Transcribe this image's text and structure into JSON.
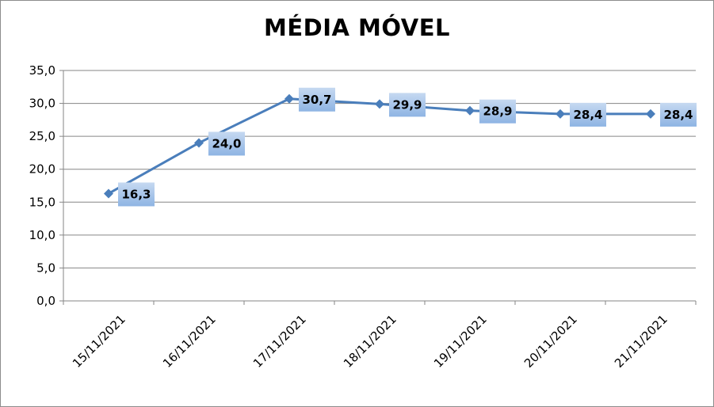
{
  "chart_data": {
    "type": "line",
    "title": "MÉDIA MÓVEL",
    "categories": [
      "15/11/2021",
      "16/11/2021",
      "17/11/2021",
      "18/11/2021",
      "19/11/2021",
      "20/11/2021",
      "21/11/2021"
    ],
    "series": [
      {
        "values": [
          16.3,
          24.0,
          30.7,
          29.9,
          28.9,
          28.4,
          28.4
        ]
      }
    ],
    "data_labels": [
      "16,3",
      "24,0",
      "30,7",
      "29,9",
      "28,9",
      "28,4",
      "28,4"
    ],
    "y_ticks": [
      "0,0",
      "5,0",
      "10,0",
      "15,0",
      "20,0",
      "25,0",
      "30,0",
      "35,0"
    ],
    "ylim": [
      0,
      35
    ],
    "grid": true,
    "legend": "none",
    "colors": {
      "line": "#4a7ebb",
      "label_bg_top": "#c6d9f1",
      "label_bg_bottom": "#8eb4e3",
      "grid": "#868686"
    }
  }
}
